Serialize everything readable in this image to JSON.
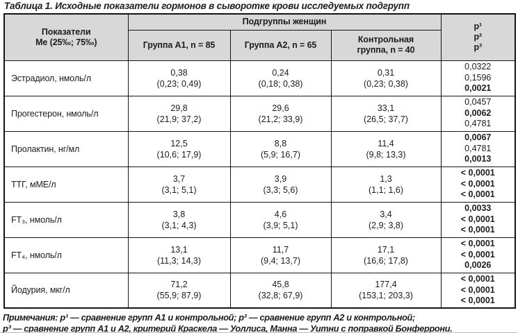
{
  "title": "Таблица 1. Исходные показатели гормонов в сыворотке крови исследуемых подгрупп",
  "colors": {
    "header_bg": "#d8d8d8",
    "border": "#141414",
    "text": "#1c1c1c"
  },
  "header": {
    "indicator_line1": "Показатели",
    "indicator_line2": "Ме (25‰; 75‰)",
    "subgroups_label": "Подгруппы женщин",
    "group_a1": "Группа А1, n = 85",
    "group_a2": "Группа А2, n = 65",
    "group_control_line1": "Контрольная",
    "group_control_line2": "группа, n = 40",
    "p1": "p¹",
    "p2": "p²",
    "p3": "p³"
  },
  "rows": [
    {
      "indicator": "Эстрадиол, нмоль/л",
      "a1_value": "0,38",
      "a1_range": "(0,23; 0,49)",
      "a2_value": "0,24",
      "a2_range": "(0,18; 0,38)",
      "ctrl_value": "0,31",
      "ctrl_range": "(0,23; 0,38)",
      "p1": "0,0322",
      "p1_bold": false,
      "p2": "0,1596",
      "p2_bold": false,
      "p3": "0,0021",
      "p3_bold": true
    },
    {
      "indicator": "Прогестерон, нмоль/л",
      "a1_value": "29,8",
      "a1_range": "(21,9; 37,2)",
      "a2_value": "29,6",
      "a2_range": "(21,2; 33,9)",
      "ctrl_value": "33,1",
      "ctrl_range": "(26,5; 37,7)",
      "p1": "0,0457",
      "p1_bold": false,
      "p2": "0,0062",
      "p2_bold": true,
      "p3": "0,4781",
      "p3_bold": false
    },
    {
      "indicator": "Пролактин, нг/мл",
      "a1_value": "12,5",
      "a1_range": "(10,6; 17,9)",
      "a2_value": "8,8",
      "a2_range": "(5,9; 16,7)",
      "ctrl_value": "11,4",
      "ctrl_range": "(9,8; 13,3)",
      "p1": "0,0067",
      "p1_bold": true,
      "p2": "0,4781",
      "p2_bold": false,
      "p3": "0,0013",
      "p3_bold": true
    },
    {
      "indicator": "ТТГ, мМЕ/л",
      "a1_value": "3,7",
      "a1_range": "(3,1; 5,1)",
      "a2_value": "3,9",
      "a2_range": "(3,3; 5,6)",
      "ctrl_value": "1,3",
      "ctrl_range": "(1,1; 1,6)",
      "p1": "< 0,0001",
      "p1_bold": true,
      "p2": "< 0,0001",
      "p2_bold": true,
      "p3": "< 0,0001",
      "p3_bold": true
    },
    {
      "indicator": "FT₃, нмоль/л",
      "a1_value": "3,8",
      "a1_range": "(3,1; 4,3)",
      "a2_value": "4,6",
      "a2_range": "(3,9; 5,1)",
      "ctrl_value": "3,4",
      "ctrl_range": "(2,9; 3,8)",
      "p1": "0,0033",
      "p1_bold": true,
      "p2": "< 0,0001",
      "p2_bold": true,
      "p3": "< 0,0001",
      "p3_bold": true
    },
    {
      "indicator": "FT₄, нмоль/л",
      "a1_value": "13,1",
      "a1_range": "(11,3; 14,3)",
      "a2_value": "11,7",
      "a2_range": "(9,4; 13,7)",
      "ctrl_value": "17,1",
      "ctrl_range": "(16,6; 17,8)",
      "p1": "< 0,0001",
      "p1_bold": true,
      "p2": "< 0,0001",
      "p2_bold": true,
      "p3": "0,0026",
      "p3_bold": true
    },
    {
      "indicator": "Йодурия, мкг/л",
      "a1_value": "71,2",
      "a1_range": "(55,9; 87,9)",
      "a2_value": "45,8",
      "a2_range": "(32,8; 67,9)",
      "ctrl_value": "177,4",
      "ctrl_range": "(153,1; 203,3)",
      "p1": "< 0,0001",
      "p1_bold": true,
      "p2": "< 0,0001",
      "p2_bold": true,
      "p3": "< 0,0001",
      "p3_bold": true
    }
  ],
  "footnote_line1": "Примечания: p¹ — сравнение групп А1 и контрольной; p² — сравнение групп А2 и контрольной;",
  "footnote_line2": "p³ — сравнение групп А1 и А2, критерий Краскела — Уоллиса, Манна — Уитни с поправкой Бонферрони."
}
